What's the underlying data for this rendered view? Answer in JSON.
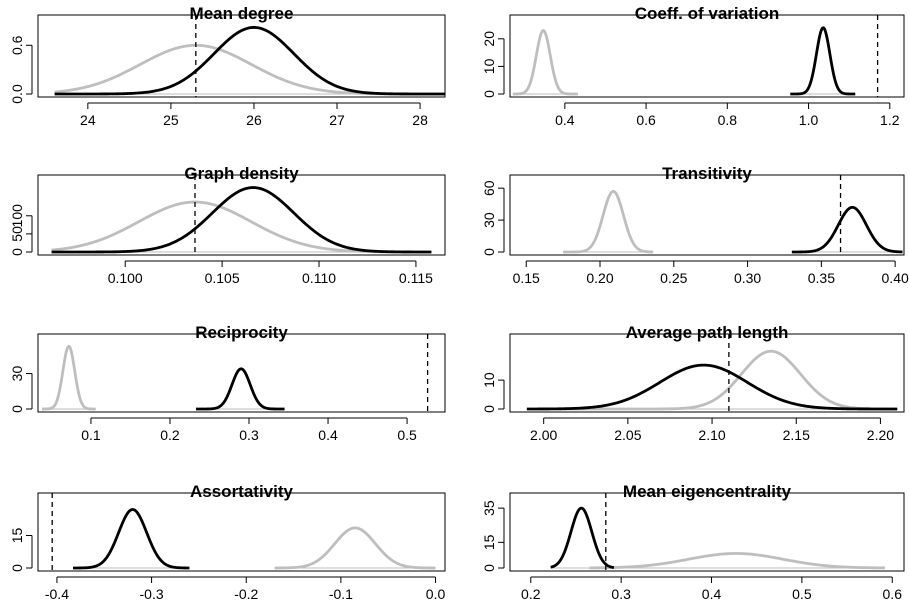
{
  "colors": {
    "observed_fit": "#000000",
    "null_model": "#bebebe",
    "reference": "#000000"
  },
  "chart_data": [
    {
      "type": "line",
      "title": "Mean degree",
      "xlim": [
        23.4,
        28.3
      ],
      "ylim": [
        0,
        0.85
      ],
      "xticks": [
        24,
        25,
        26,
        27,
        28
      ],
      "xtick_labels": [
        "24",
        "25",
        "26",
        "27",
        "28"
      ],
      "yticks": [
        0,
        0.6
      ],
      "ytick_labels": [
        "0.0",
        "0.6"
      ],
      "reference_x": 25.3,
      "series": [
        {
          "style": "observed_fit",
          "color": "#000000",
          "mean": 26.0,
          "sd": 0.48,
          "peak": 0.82,
          "range": [
            23.6,
            28.3
          ]
        },
        {
          "style": "null_model",
          "color": "#bebebe",
          "mean": 25.3,
          "sd": 0.67,
          "peak": 0.6,
          "range": [
            23.6,
            28.3
          ]
        }
      ]
    },
    {
      "type": "line",
      "title": "Coeff. of variation",
      "xlim": [
        0.265,
        1.235
      ],
      "ylim": [
        0,
        25
      ],
      "xticks": [
        0.4,
        0.6,
        0.8,
        1.0,
        1.2
      ],
      "xtick_labels": [
        "0.4",
        "0.6",
        "0.8",
        "1.0",
        "1.2"
      ],
      "yticks": [
        0,
        10,
        20
      ],
      "ytick_labels": [
        "0",
        "10",
        "20"
      ],
      "reference_x": 1.17,
      "series": [
        {
          "style": "observed_fit",
          "color": "#000000",
          "mean": 1.036,
          "sd": 0.0165,
          "peak": 24,
          "range": [
            0.955,
            1.115
          ]
        },
        {
          "style": "null_model",
          "color": "#bebebe",
          "mean": 0.347,
          "sd": 0.0172,
          "peak": 23,
          "range": [
            0.272,
            0.432
          ]
        }
      ]
    },
    {
      "type": "line",
      "title": "Graph density",
      "xlim": [
        0.0955,
        0.1165
      ],
      "ylim": [
        0,
        185
      ],
      "xticks": [
        0.1,
        0.105,
        0.11,
        0.115
      ],
      "xtick_labels": [
        "0.100",
        "0.105",
        "0.110",
        "0.115"
      ],
      "yticks": [
        0,
        50,
        100
      ],
      "ytick_labels": [
        "0",
        "50",
        "100"
      ],
      "reference_x": 0.1036,
      "series": [
        {
          "style": "observed_fit",
          "color": "#000000",
          "mean": 0.1066,
          "sd": 0.0021,
          "peak": 178,
          "range": [
            0.0962,
            0.1158
          ]
        },
        {
          "style": "null_model",
          "color": "#bebebe",
          "mean": 0.1036,
          "sd": 0.0029,
          "peak": 138,
          "range": [
            0.0962,
            0.1158
          ]
        }
      ]
    },
    {
      "type": "line",
      "title": "Transitivity",
      "xlim": [
        0.139,
        0.406
      ],
      "ylim": [
        0,
        63
      ],
      "xticks": [
        0.15,
        0.2,
        0.25,
        0.3,
        0.35,
        0.4
      ],
      "xtick_labels": [
        "0.15",
        "0.20",
        "0.25",
        "0.30",
        "0.35",
        "0.40"
      ],
      "yticks": [
        0,
        30,
        60
      ],
      "ytick_labels": [
        "0",
        "30",
        "60"
      ],
      "reference_x": 0.363,
      "series": [
        {
          "style": "observed_fit",
          "color": "#000000",
          "mean": 0.371,
          "sd": 0.0095,
          "peak": 42,
          "range": [
            0.33,
            0.405
          ]
        },
        {
          "style": "null_model",
          "color": "#bebebe",
          "mean": 0.209,
          "sd": 0.0069,
          "peak": 57,
          "range": [
            0.175,
            0.236
          ]
        }
      ]
    },
    {
      "type": "line",
      "title": "Reciprocity",
      "xlim": [
        0.033,
        0.548
      ],
      "ylim": [
        0,
        55
      ],
      "xticks": [
        0.1,
        0.2,
        0.3,
        0.4,
        0.5
      ],
      "xtick_labels": [
        "0.1",
        "0.2",
        "0.3",
        "0.4",
        "0.5"
      ],
      "yticks": [
        0,
        30
      ],
      "ytick_labels": [
        "0",
        "30"
      ],
      "reference_x": 0.526,
      "series": [
        {
          "style": "observed_fit",
          "color": "#000000",
          "mean": 0.29,
          "sd": 0.0115,
          "peak": 34,
          "range": [
            0.233,
            0.345
          ]
        },
        {
          "style": "null_model",
          "color": "#bebebe",
          "mean": 0.072,
          "sd": 0.0075,
          "peak": 53,
          "range": [
            0.038,
            0.106
          ]
        }
      ]
    },
    {
      "type": "line",
      "title": "Average path length",
      "xlim": [
        1.98,
        2.214
      ],
      "ylim": [
        0,
        22.5
      ],
      "xticks": [
        2.0,
        2.05,
        2.1,
        2.15,
        2.2
      ],
      "xtick_labels": [
        "2.00",
        "2.05",
        "2.10",
        "2.15",
        "2.20"
      ],
      "yticks": [
        0,
        10
      ],
      "ytick_labels": [
        "0",
        "10"
      ],
      "reference_x": 2.11,
      "series": [
        {
          "style": "observed_fit",
          "color": "#000000",
          "mean": 2.095,
          "sd": 0.026,
          "peak": 15.2,
          "range": [
            1.99,
            2.21
          ]
        },
        {
          "style": "null_model",
          "color": "#bebebe",
          "mean": 2.135,
          "sd": 0.0175,
          "peak": 20,
          "range": [
            2.01,
            2.21
          ]
        }
      ]
    },
    {
      "type": "line",
      "title": "Assortativity",
      "xlim": [
        -0.42,
        0.01
      ],
      "ylim": [
        0,
        30
      ],
      "xticks": [
        -0.4,
        -0.3,
        -0.2,
        -0.1,
        0.0
      ],
      "xtick_labels": [
        "-0.4",
        "-0.3",
        "-0.2",
        "-0.1",
        "0.0"
      ],
      "yticks": [
        0,
        15
      ],
      "ytick_labels": [
        "0",
        "15"
      ],
      "reference_x": -0.405,
      "series": [
        {
          "style": "observed_fit",
          "color": "#000000",
          "mean": -0.32,
          "sd": 0.0148,
          "peak": 27,
          "range": [
            -0.383,
            -0.26
          ]
        },
        {
          "style": "null_model",
          "color": "#bebebe",
          "mean": -0.085,
          "sd": 0.0215,
          "peak": 18.5,
          "range": [
            -0.17,
            0.0
          ]
        }
      ]
    },
    {
      "type": "line",
      "title": "Mean eigencentrality",
      "xlim": [
        0.177,
        0.613
      ],
      "ylim": [
        0,
        38
      ],
      "xticks": [
        0.2,
        0.3,
        0.4,
        0.5,
        0.6
      ],
      "xtick_labels": [
        "0.2",
        "0.3",
        "0.4",
        "0.5",
        "0.6"
      ],
      "yticks": [
        0,
        15,
        35
      ],
      "ytick_labels": [
        "0",
        "15",
        "35"
      ],
      "reference_x": 0.283,
      "series": [
        {
          "style": "observed_fit",
          "color": "#000000",
          "mean": 0.256,
          "sd": 0.0115,
          "peak": 35,
          "range": [
            0.222,
            0.292
          ]
        },
        {
          "style": "null_model",
          "color": "#bebebe",
          "mean": 0.427,
          "sd": 0.052,
          "peak": 8.5,
          "range": [
            0.265,
            0.592
          ]
        }
      ]
    }
  ]
}
